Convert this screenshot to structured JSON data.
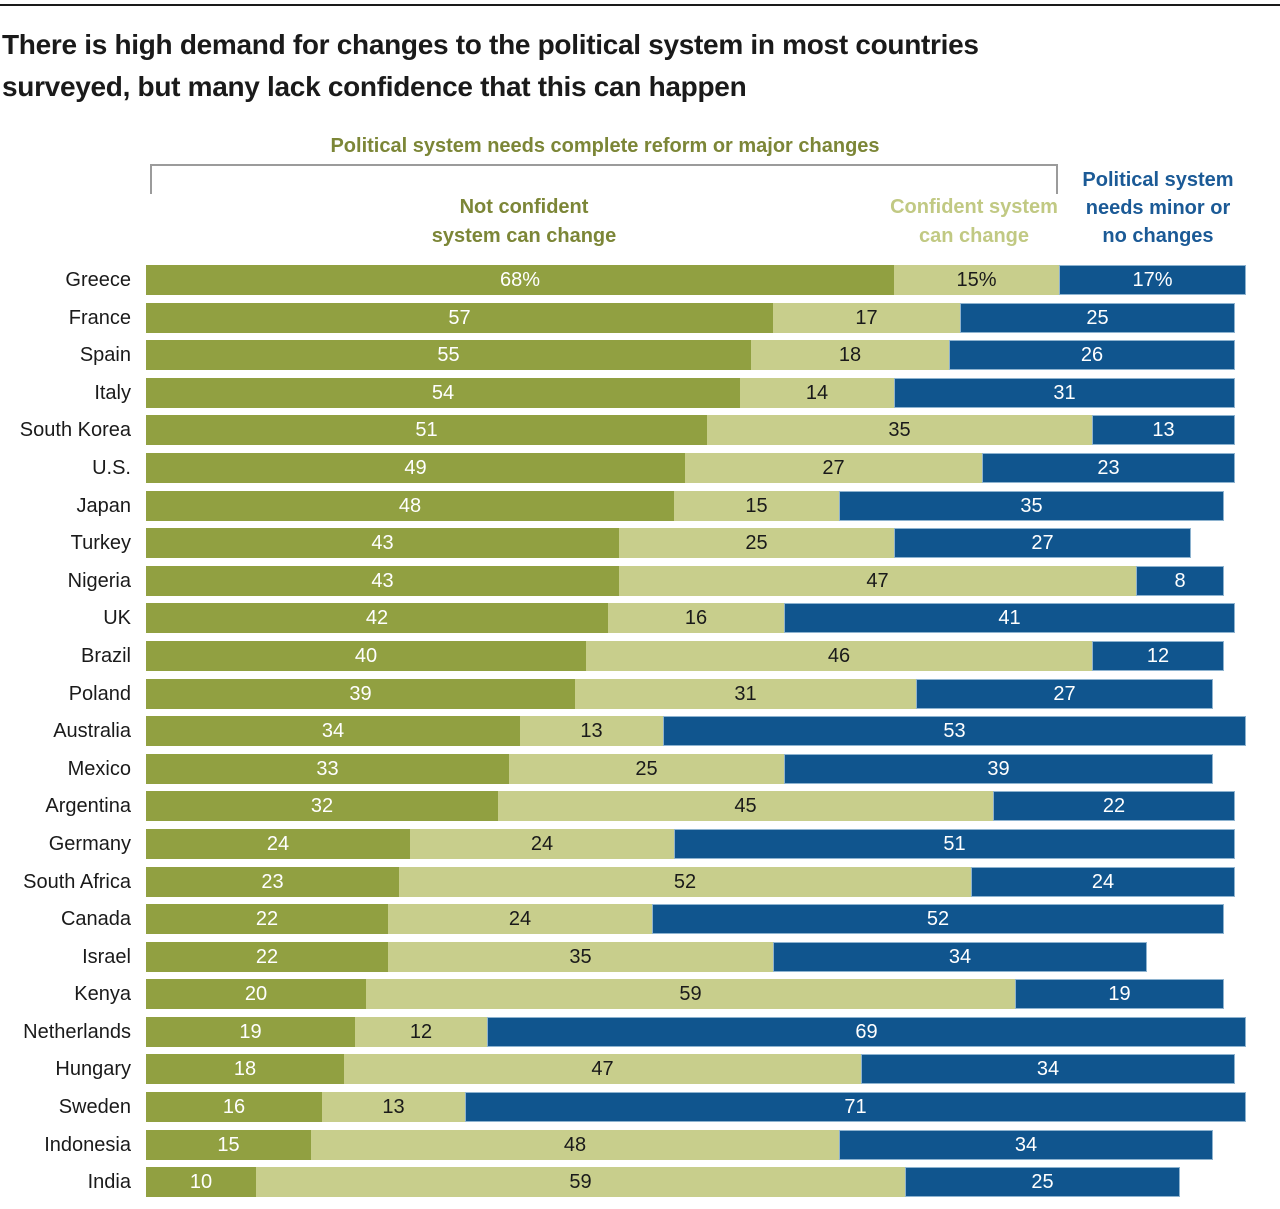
{
  "header": {
    "title_line1": "There is high demand for changes to the political system in most countries",
    "title_line2": "surveyed, but many lack confidence that this can happen"
  },
  "annotation": {
    "bracket_label": "Political system needs complete reform or major changes",
    "not_confident_lines": [
      "Not confident",
      "system can change"
    ],
    "confident_lines": [
      "Confident system",
      "can change"
    ],
    "minor_lines": [
      "Political system",
      "needs minor or",
      "no changes"
    ]
  },
  "style": {
    "olive_text": "#7C8637",
    "light_green_text": "#C1C983",
    "blue_text": "#1B5A96",
    "bracket_line": "#9b9b9b",
    "title_color": "#1a1a1a"
  },
  "chart_data": {
    "type": "bar",
    "orientation": "horizontal",
    "stacked": true,
    "unit": "percent",
    "xlim": [
      0,
      100
    ],
    "legend_position": "top",
    "series": [
      "Not confident system can change",
      "Confident system can change",
      "Political system needs minor or no changes"
    ],
    "segment_colors": [
      "#91A041",
      "#C8CE8C",
      "#10558E"
    ],
    "value_text_colors": [
      "#ffffff",
      "#1a1a1a",
      "#ffffff"
    ],
    "first_row_percent_suffix": true,
    "rows": [
      {
        "country": "Greece",
        "values": [
          68,
          15,
          17
        ]
      },
      {
        "country": "France",
        "values": [
          57,
          17,
          25
        ]
      },
      {
        "country": "Spain",
        "values": [
          55,
          18,
          26
        ]
      },
      {
        "country": "Italy",
        "values": [
          54,
          14,
          31
        ]
      },
      {
        "country": "South Korea",
        "values": [
          51,
          35,
          13
        ]
      },
      {
        "country": "U.S.",
        "values": [
          49,
          27,
          23
        ]
      },
      {
        "country": "Japan",
        "values": [
          48,
          15,
          35
        ]
      },
      {
        "country": "Turkey",
        "values": [
          43,
          25,
          27
        ]
      },
      {
        "country": "Nigeria",
        "values": [
          43,
          47,
          8
        ]
      },
      {
        "country": "UK",
        "values": [
          42,
          16,
          41
        ]
      },
      {
        "country": "Brazil",
        "values": [
          40,
          46,
          12
        ]
      },
      {
        "country": "Poland",
        "values": [
          39,
          31,
          27
        ]
      },
      {
        "country": "Australia",
        "values": [
          34,
          13,
          53
        ]
      },
      {
        "country": "Mexico",
        "values": [
          33,
          25,
          39
        ]
      },
      {
        "country": "Argentina",
        "values": [
          32,
          45,
          22
        ]
      },
      {
        "country": "Germany",
        "values": [
          24,
          24,
          51
        ]
      },
      {
        "country": "South Africa",
        "values": [
          23,
          52,
          24
        ]
      },
      {
        "country": "Canada",
        "values": [
          22,
          24,
          52
        ]
      },
      {
        "country": "Israel",
        "values": [
          22,
          35,
          34
        ]
      },
      {
        "country": "Kenya",
        "values": [
          20,
          59,
          19
        ]
      },
      {
        "country": "Netherlands",
        "values": [
          19,
          12,
          69
        ]
      },
      {
        "country": "Hungary",
        "values": [
          18,
          47,
          34
        ]
      },
      {
        "country": "Sweden",
        "values": [
          16,
          13,
          71
        ]
      },
      {
        "country": "Indonesia",
        "values": [
          15,
          48,
          34
        ]
      },
      {
        "country": "India",
        "values": [
          10,
          59,
          25
        ]
      }
    ]
  }
}
